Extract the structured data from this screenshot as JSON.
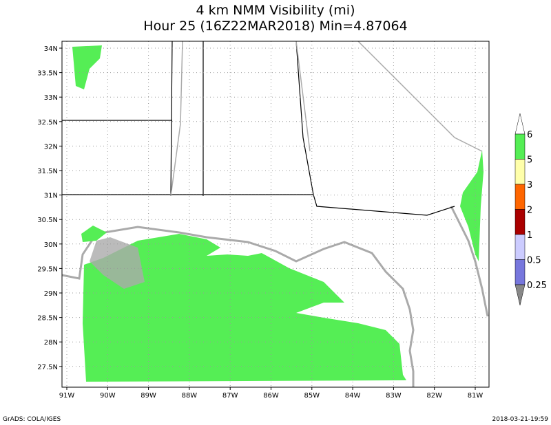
{
  "header": {
    "title_line1": "4 km NMM Visibility (mi)",
    "title_line2": "Hour 25 (16Z22MAR2018) Min=4.87064"
  },
  "map": {
    "lat_labels": [
      "34N",
      "33.5N",
      "33N",
      "32.5N",
      "32N",
      "31.5N",
      "31N",
      "30.5N",
      "30N",
      "29.5N",
      "29N",
      "28.5N",
      "28N",
      "27.5N"
    ],
    "lon_labels": [
      "91W",
      "90W",
      "89W",
      "88W",
      "87W",
      "86W",
      "85W",
      "84W",
      "83W",
      "82W",
      "81W"
    ],
    "fill_color": "#55ee55",
    "coast_color": "#aaaaaa"
  },
  "colorbar": {
    "labels": [
      "6",
      "5",
      "3",
      "2",
      "1",
      "0.5",
      "0.25"
    ],
    "colors": [
      "#ffffff",
      "#55ee55",
      "#ffffaa",
      "#ff6600",
      "#aa0000",
      "#ccccff",
      "#7777dd",
      "#888888"
    ]
  },
  "footer": {
    "left": "GrADS: COLA/IGES",
    "right": "2018-03-21-19:59"
  }
}
